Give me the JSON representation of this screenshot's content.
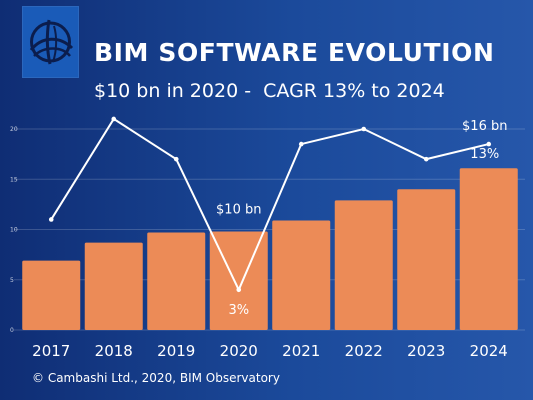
{
  "header": {
    "title": "BIM SOFTWARE EVOLUTION",
    "subtitle": "$10 bn in 2020 -  CAGR 13% to 2024"
  },
  "footer": {
    "text": "© Cambashi Ltd., 2020, BIM Observatory"
  },
  "colors": {
    "background": "#1b4a9b",
    "bars": "#ec8b57",
    "line": "#ffffff",
    "logo": "#1a5bb8"
  },
  "icons": {
    "logo": "bim-observatory-logo-icon"
  },
  "chart_data": {
    "type": "bar",
    "categories": [
      "2017",
      "2018",
      "2019",
      "2020",
      "2021",
      "2022",
      "2023",
      "2024"
    ],
    "series": [
      {
        "type": "bar",
        "values": [
          6.9,
          8.7,
          9.7,
          9.8,
          10.9,
          12.9,
          14.0,
          16.1
        ]
      },
      {
        "type": "line",
        "values": [
          11.0,
          21.0,
          17.0,
          4.0,
          18.5,
          20.0,
          17.0,
          18.5
        ]
      }
    ],
    "ylim": [
      0,
      22
    ],
    "yticks": [
      0,
      5,
      10,
      15,
      20
    ],
    "grid": true,
    "annotations": [
      {
        "text": "$10 bn",
        "category": "2020"
      },
      {
        "text": "3%",
        "category": "2020"
      },
      {
        "text": "$16 bn",
        "category": "2024"
      },
      {
        "text": "13%",
        "category": "2024"
      }
    ]
  }
}
